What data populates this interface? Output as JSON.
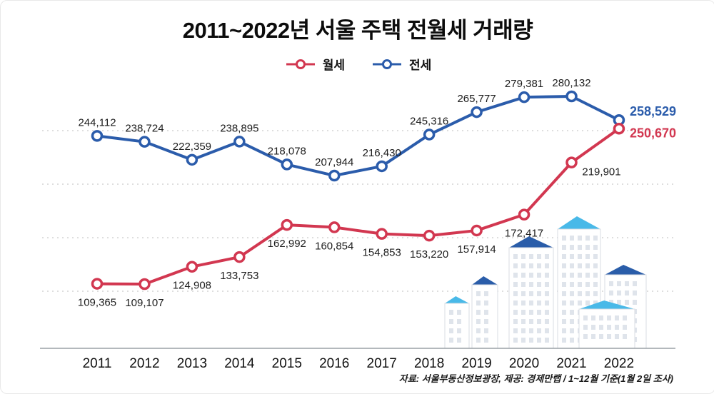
{
  "title": "2011~2022년 서울 주택 전월세 거래량",
  "source_note": "자료: 서울부동산정보광장, 제공: 경제만랩 / 1~12월 기준(1월 2일 조사)",
  "legend": {
    "items": [
      {
        "label": "월세",
        "color": "#d23750"
      },
      {
        "label": "전세",
        "color": "#2b5cab"
      }
    ]
  },
  "chart_data": {
    "type": "line",
    "categories": [
      "2011",
      "2012",
      "2013",
      "2014",
      "2015",
      "2016",
      "2017",
      "2018",
      "2019",
      "2020",
      "2021",
      "2022"
    ],
    "series": [
      {
        "name": "월세",
        "color": "#d23750",
        "label_position": "below",
        "values": [
          109365,
          109107,
          124908,
          133753,
          162992,
          160854,
          154853,
          153220,
          157914,
          172417,
          219901,
          250670
        ],
        "label_offsets": {
          "10": [
            42,
            18
          ]
        }
      },
      {
        "name": "전세",
        "color": "#2b5cab",
        "label_position": "above",
        "values": [
          244112,
          238724,
          222359,
          238895,
          218078,
          207944,
          216430,
          245316,
          265777,
          279381,
          280132,
          258529
        ],
        "label_offsets": {}
      }
    ],
    "ylim": [
      90000,
      300000
    ],
    "grid": "horizontal-dotted",
    "legend_position": "top-center",
    "marker": "open-circle",
    "accent_colors": {
      "monthly_rent": "#d23750",
      "jeonse": "#2b5cab"
    }
  }
}
